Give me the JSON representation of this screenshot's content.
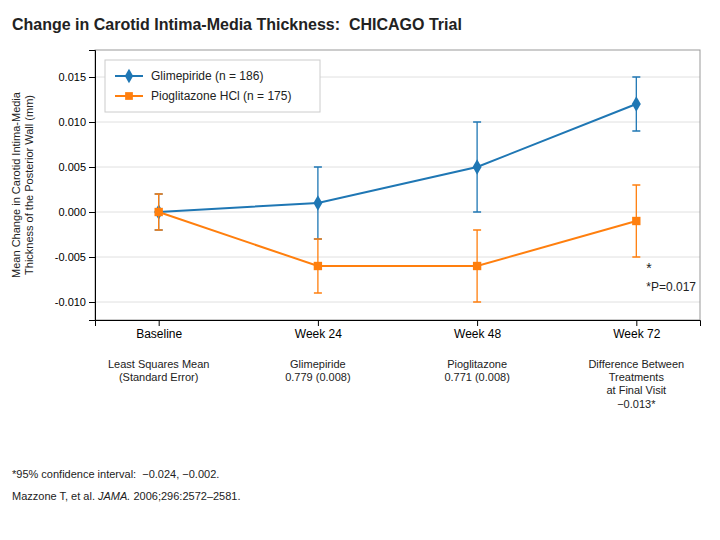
{
  "chart_data": {
    "type": "line",
    "title": "Change in Carotid Intima-Media Thickness:  CHICAGO Trial",
    "y_label": "Mean Change in Carotid Intima-Media\nThickness of the Posterior Wall (mm)",
    "categories": [
      "Baseline",
      "Week 24",
      "Week 48",
      "Week 72"
    ],
    "series": [
      {
        "name": "Glimepiride (n = 186)",
        "marker": "diamond",
        "values": [
          0.0,
          0.001,
          0.005,
          0.012
        ],
        "errors": [
          0.002,
          0.004,
          0.005,
          0.003
        ]
      },
      {
        "name": "Pioglitazone HCl (n = 175)",
        "marker": "square",
        "values": [
          0.0,
          -0.006,
          -0.006,
          -0.001
        ],
        "errors": [
          0.002,
          0.003,
          0.004,
          0.004
        ]
      }
    ],
    "ylim": [
      -0.012,
      0.018
    ],
    "yticks": [
      {
        "value": -0.01,
        "label": "-0.010"
      },
      {
        "value": -0.005,
        "label": "-0.005"
      },
      {
        "value": 0.0,
        "label": "0.000"
      },
      {
        "value": 0.005,
        "label": "0.005"
      },
      {
        "value": 0.01,
        "label": "0.010"
      },
      {
        "value": 0.015,
        "label": "0.015"
      }
    ],
    "grid": true,
    "legend": "upper left",
    "annotations": [
      "*",
      "*P=0.017"
    ],
    "table_columns": [
      "Least Squares Mean\n(Standard Error)",
      "Glimepiride\n0.779 (0.008)",
      "Pioglitazone\n0.771 (0.008)",
      "Difference Between\nTreatments\nat Final Visit\n−0.013*"
    ],
    "footnotes": [
      [
        "*95% confidence interval:  −0.024, −0.002."
      ],
      [
        "Mazzone T, et al. ",
        "JAMA.",
        " 2006;296:2572–2581."
      ]
    ]
  }
}
